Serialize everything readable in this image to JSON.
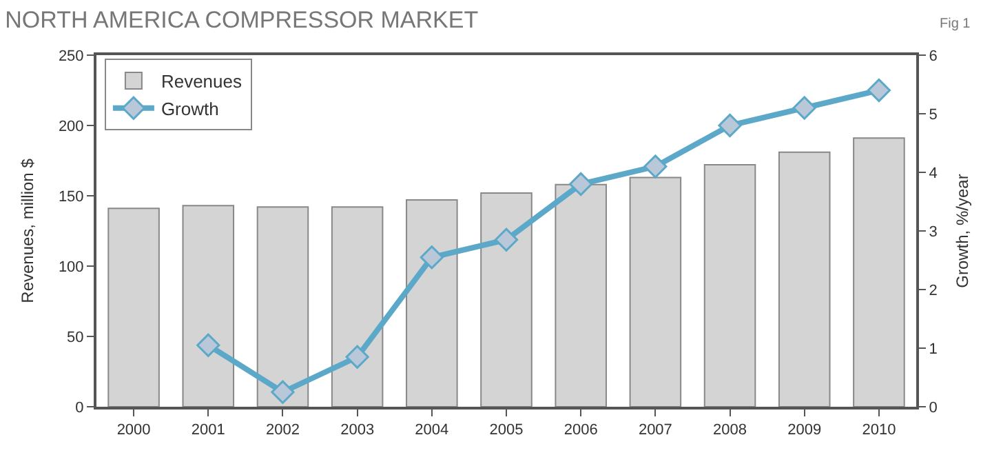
{
  "chart_data": {
    "type": "bar",
    "title": "NORTH AMERICA COMPRESSOR MARKET",
    "annotations": [
      "Fig 1"
    ],
    "ylabel": "Revenues, million $",
    "y2label": "Growth, %/year",
    "categories": [
      "2000",
      "2001",
      "2002",
      "2003",
      "2004",
      "2005",
      "2006",
      "2007",
      "2008",
      "2009",
      "2010"
    ],
    "series": [
      {
        "name": "Revenues",
        "color": "#d4d4d4",
        "values": [
          141,
          143,
          142,
          142,
          147,
          152,
          158,
          163,
          172,
          181,
          191
        ]
      },
      {
        "name": "Growth",
        "type": "line",
        "axis": "y2",
        "color": "#5ba8c8",
        "marker": "diamond",
        "values": [
          null,
          1.05,
          0.25,
          0.85,
          2.55,
          2.85,
          3.8,
          4.1,
          4.8,
          5.1,
          5.4
        ]
      }
    ],
    "ylim": [
      0,
      250
    ],
    "yticks": [
      0,
      50,
      100,
      150,
      200,
      250
    ],
    "y2lim": [
      0,
      6
    ],
    "y2ticks": [
      0,
      1,
      2,
      3,
      4,
      5,
      6
    ],
    "legend": "top left"
  }
}
